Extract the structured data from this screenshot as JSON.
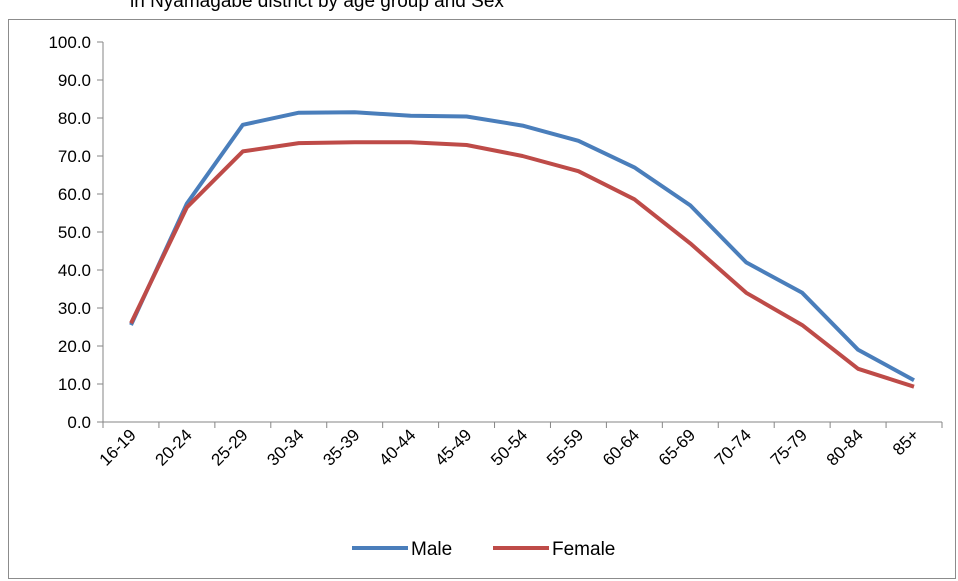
{
  "title": "in Nyamagabe district by age group and Sex",
  "chart_data": {
    "type": "line",
    "title": "in Nyamagabe district by age group and Sex",
    "categories": [
      "16-19",
      "20-24",
      "25-29",
      "30-34",
      "35-39",
      "40-44",
      "45-49",
      "50-54",
      "55-59",
      "60-64",
      "65-69",
      "70-74",
      "75-79",
      "80-84",
      "85+"
    ],
    "series": [
      {
        "name": "Male",
        "color": "#4a7ebb",
        "values": [
          25.5,
          57.5,
          78.2,
          81.4,
          81.5,
          80.6,
          80.4,
          78.0,
          74.0,
          67.0,
          57.0,
          42.0,
          34.0,
          19.0,
          11.0
        ]
      },
      {
        "name": "Female",
        "color": "#be4b48",
        "values": [
          26.0,
          56.5,
          71.2,
          73.4,
          73.6,
          73.6,
          72.9,
          70.0,
          66.0,
          58.6,
          47.0,
          34.0,
          25.5,
          14.0,
          9.3
        ]
      }
    ],
    "yticks": [
      "0.0",
      "10.0",
      "20.0",
      "30.0",
      "40.0",
      "50.0",
      "60.0",
      "70.0",
      "80.0",
      "90.0",
      "100.0"
    ],
    "ylim": [
      0,
      100
    ],
    "grid": false,
    "legend": "bottom"
  }
}
